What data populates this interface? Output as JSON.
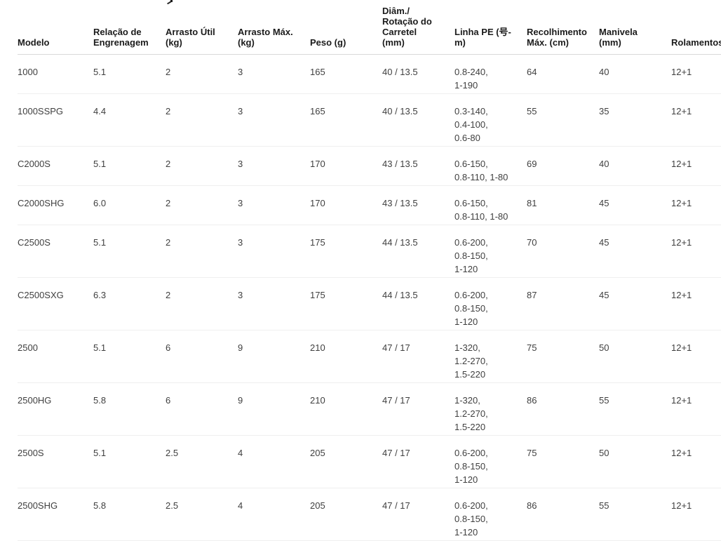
{
  "colors": {
    "background": "#ffffff",
    "header_text": "#1b1b1b",
    "body_text": "#3f3f3f",
    "header_rule": "#d9d9d9",
    "row_rule": "#efefef"
  },
  "table": {
    "columns": [
      {
        "key": "model",
        "label": "Modelo"
      },
      {
        "key": "gear_ratio",
        "label": "Relação de\nEngrenagem"
      },
      {
        "key": "useful_drag",
        "label": "Arrasto Útil\n(kg)"
      },
      {
        "key": "max_drag",
        "label": "Arrasto Máx.\n(kg)"
      },
      {
        "key": "weight",
        "label": "Peso (g)"
      },
      {
        "key": "spool_diam_rotation",
        "label": "Diâm./\nRotação do\nCarretel\n(mm)"
      },
      {
        "key": "pe_line",
        "label": "Linha PE (号-\nm)"
      },
      {
        "key": "max_retrieve",
        "label": "Recolhimento\nMáx. (cm)"
      },
      {
        "key": "handle",
        "label": "Manivela\n(mm)"
      },
      {
        "key": "bearings",
        "label": "Rolamentos"
      }
    ],
    "rows": [
      {
        "model": "1000",
        "gear_ratio": "5.1",
        "useful_drag": "2",
        "max_drag": "3",
        "weight": "165",
        "spool_diam_rotation": "40 / 13.5",
        "pe_line": "0.8-240,\n1-190",
        "max_retrieve": "64",
        "handle": "40",
        "bearings": "12+1"
      },
      {
        "model": "1000SSPG",
        "gear_ratio": "4.4",
        "useful_drag": "2",
        "max_drag": "3",
        "weight": "165",
        "spool_diam_rotation": "40 / 13.5",
        "pe_line": "0.3-140,\n0.4-100,\n0.6-80",
        "max_retrieve": "55",
        "handle": "35",
        "bearings": "12+1"
      },
      {
        "model": "C2000S",
        "gear_ratio": "5.1",
        "useful_drag": "2",
        "max_drag": "3",
        "weight": "170",
        "spool_diam_rotation": "43 / 13.5",
        "pe_line": "0.6-150,\n0.8-110, 1-80",
        "max_retrieve": "69",
        "handle": "40",
        "bearings": "12+1"
      },
      {
        "model": "C2000SHG",
        "gear_ratio": "6.0",
        "useful_drag": "2",
        "max_drag": "3",
        "weight": "170",
        "spool_diam_rotation": "43 / 13.5",
        "pe_line": "0.6-150,\n0.8-110, 1-80",
        "max_retrieve": "81",
        "handle": "45",
        "bearings": "12+1"
      },
      {
        "model": "C2500S",
        "gear_ratio": "5.1",
        "useful_drag": "2",
        "max_drag": "3",
        "weight": "175",
        "spool_diam_rotation": "44 / 13.5",
        "pe_line": "0.6-200,\n0.8-150,\n1-120",
        "max_retrieve": "70",
        "handle": "45",
        "bearings": "12+1"
      },
      {
        "model": "C2500SXG",
        "gear_ratio": "6.3",
        "useful_drag": "2",
        "max_drag": "3",
        "weight": "175",
        "spool_diam_rotation": "44 / 13.5",
        "pe_line": "0.6-200,\n0.8-150,\n1-120",
        "max_retrieve": "87",
        "handle": "45",
        "bearings": "12+1"
      },
      {
        "model": "2500",
        "gear_ratio": "5.1",
        "useful_drag": "6",
        "max_drag": "9",
        "weight": "210",
        "spool_diam_rotation": "47 / 17",
        "pe_line": "1-320,\n1.2-270,\n1.5-220",
        "max_retrieve": "75",
        "handle": "50",
        "bearings": "12+1"
      },
      {
        "model": "2500HG",
        "gear_ratio": "5.8",
        "useful_drag": "6",
        "max_drag": "9",
        "weight": "210",
        "spool_diam_rotation": "47 / 17",
        "pe_line": "1-320,\n1.2-270,\n1.5-220",
        "max_retrieve": "86",
        "handle": "55",
        "bearings": "12+1"
      },
      {
        "model": "2500S",
        "gear_ratio": "5.1",
        "useful_drag": "2.5",
        "max_drag": "4",
        "weight": "205",
        "spool_diam_rotation": "47 / 17",
        "pe_line": "0.6-200,\n0.8-150,\n1-120",
        "max_retrieve": "75",
        "handle": "50",
        "bearings": "12+1"
      },
      {
        "model": "2500SHG",
        "gear_ratio": "5.8",
        "useful_drag": "2.5",
        "max_drag": "4",
        "weight": "205",
        "spool_diam_rotation": "47 / 17",
        "pe_line": "0.6-200,\n0.8-150,\n1-120",
        "max_retrieve": "86",
        "handle": "55",
        "bearings": "12+1"
      }
    ]
  }
}
